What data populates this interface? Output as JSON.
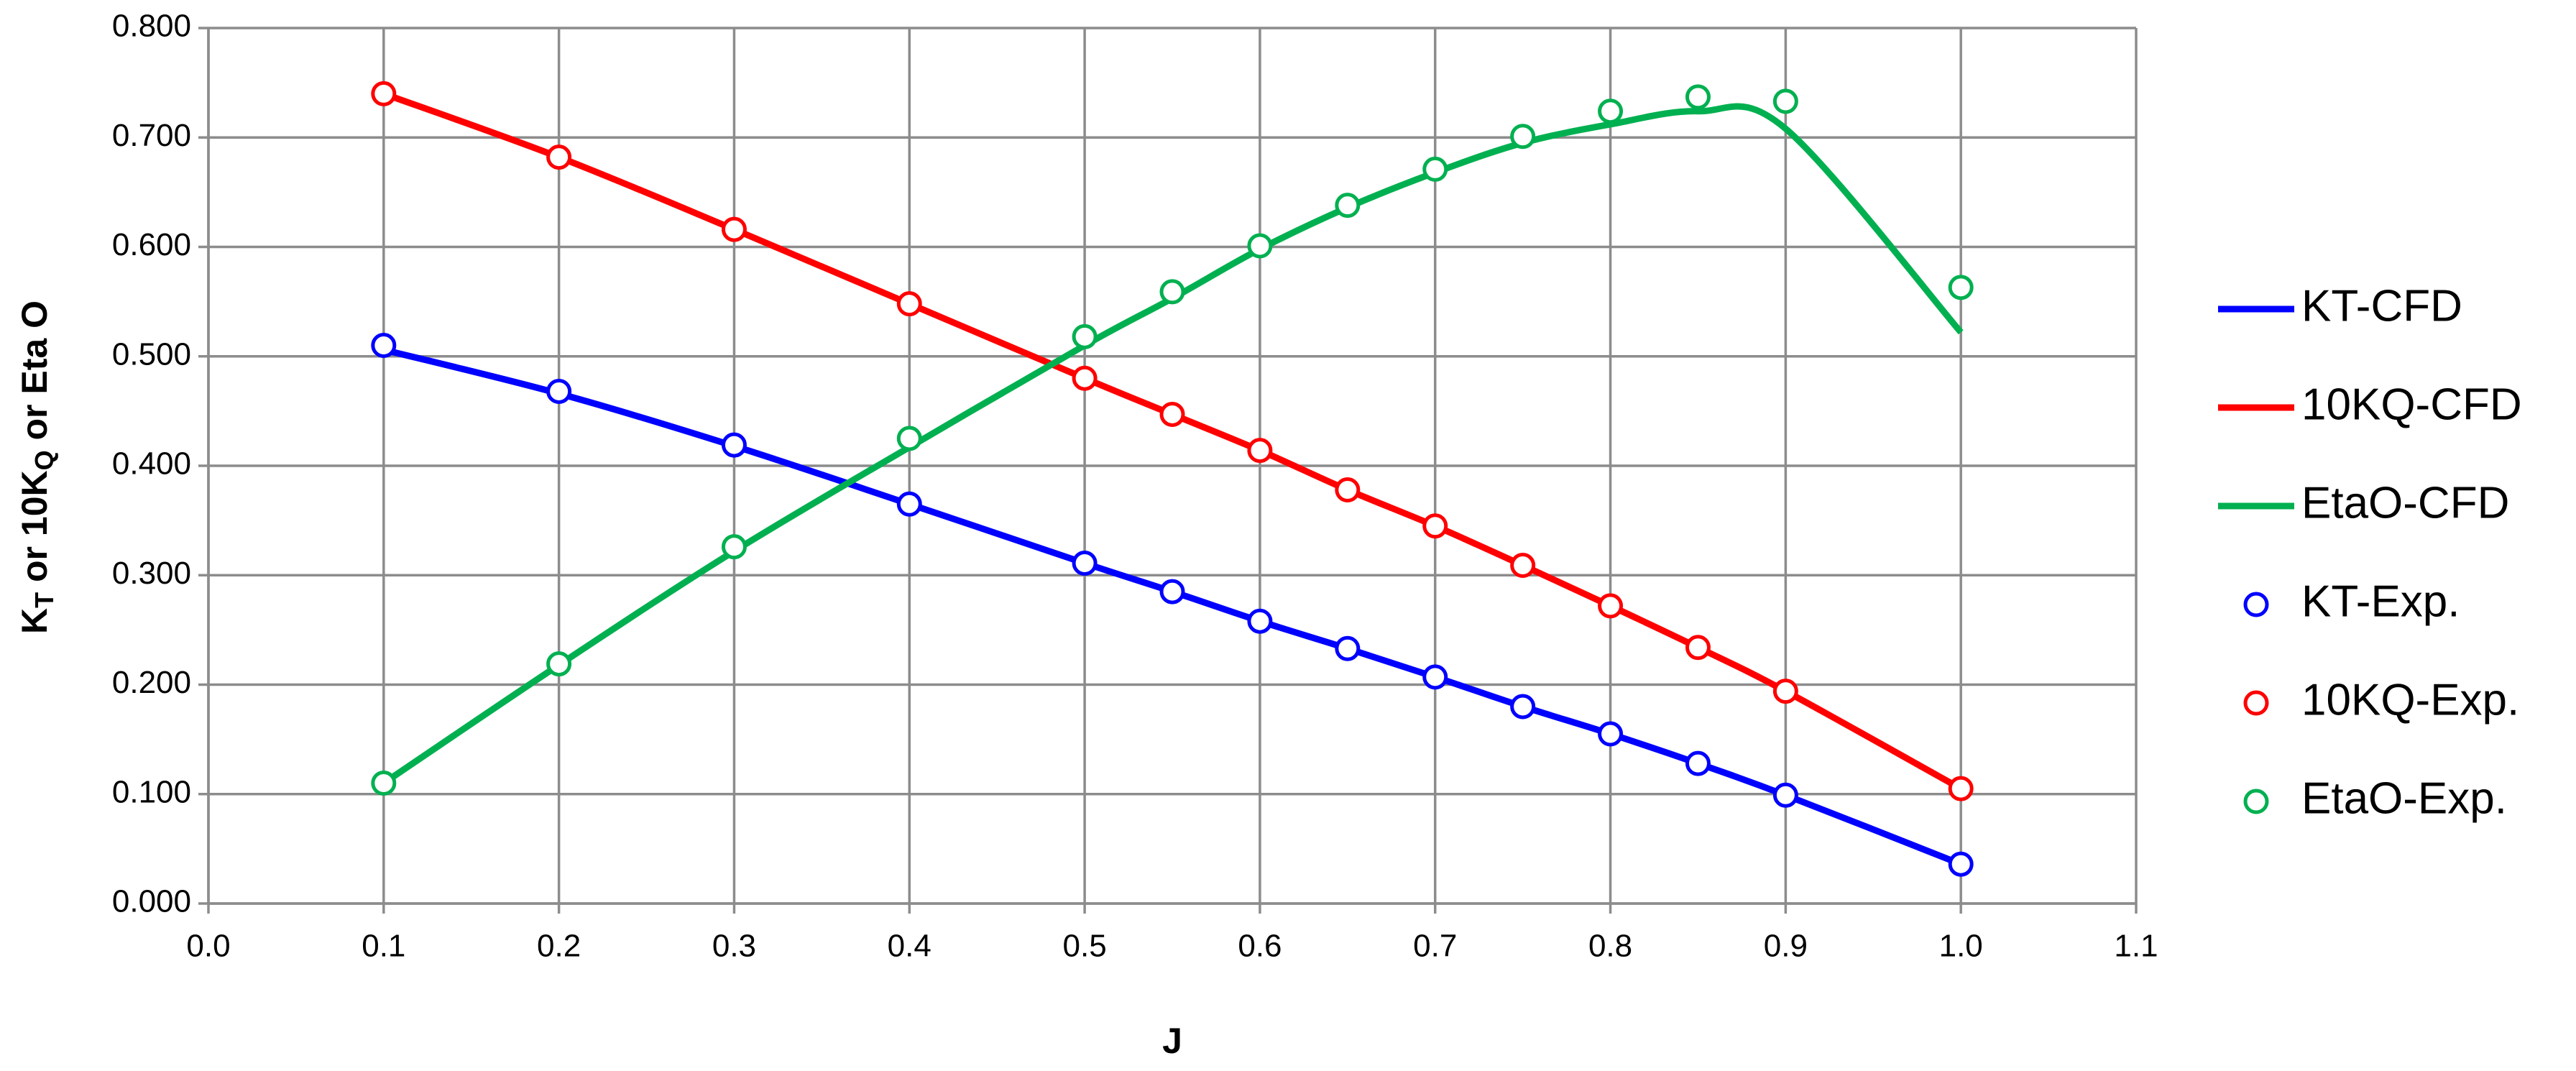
{
  "chart_data": {
    "type": "line",
    "x_label": "J",
    "y_label": [
      {
        "text": "K"
      },
      {
        "text": "T",
        "sub": true
      },
      {
        "text": " or 10K"
      },
      {
        "text": "Q",
        "sub": true
      },
      {
        "text": " or Eta O"
      }
    ],
    "x": [
      0.1,
      0.2,
      0.3,
      0.4,
      0.5,
      0.55,
      0.6,
      0.65,
      0.7,
      0.75,
      0.8,
      0.85,
      0.9,
      1.0
    ],
    "xlim": [
      0,
      1.1
    ],
    "ylim": [
      0,
      0.8
    ],
    "xticks": [
      {
        "value": 0,
        "label": "0.0"
      },
      0.1,
      0.2,
      0.3,
      0.4,
      0.5,
      0.6,
      0.7,
      0.8,
      0.9,
      {
        "value": 1,
        "label": "1.0"
      },
      1.1
    ],
    "yticks": [
      {
        "value": 0,
        "label": "0.000"
      },
      {
        "value": 0.1,
        "label": "0.100"
      },
      {
        "value": 0.2,
        "label": "0.200"
      },
      {
        "value": 0.3,
        "label": "0.300"
      },
      {
        "value": 0.4,
        "label": "0.400"
      },
      {
        "value": 0.5,
        "label": "0.500"
      },
      {
        "value": 0.6,
        "label": "0.600"
      },
      {
        "value": 0.7,
        "label": "0.700"
      },
      {
        "value": 0.8,
        "label": "0.800"
      }
    ],
    "grid": true,
    "legend": "right",
    "series": [
      {
        "name": "KT-CFD",
        "color": "#0000ff",
        "style": "line",
        "values": [
          0.506,
          0.466,
          0.418,
          0.365,
          0.311,
          0.285,
          0.258,
          0.233,
          0.207,
          0.18,
          0.155,
          0.128,
          0.099,
          0.036
        ]
      },
      {
        "name": "10KQ-CFD",
        "color": "#ff0000",
        "style": "line",
        "values": [
          0.74,
          0.682,
          0.616,
          0.548,
          0.48,
          0.447,
          0.414,
          0.378,
          0.345,
          0.309,
          0.272,
          0.234,
          0.194,
          0.105
        ]
      },
      {
        "name": "EtaO-CFD",
        "color": "#00b050",
        "style": "line",
        "values": [
          0.11,
          0.218,
          0.322,
          0.417,
          0.51,
          0.553,
          0.598,
          0.636,
          0.668,
          0.695,
          0.712,
          0.724,
          0.708,
          0.522
        ]
      },
      {
        "name": "KT-Exp.",
        "color": "#0000ff",
        "style": "marker",
        "values": [
          0.51,
          0.468,
          0.419,
          0.365,
          0.311,
          0.285,
          0.258,
          0.233,
          0.207,
          0.18,
          0.155,
          0.128,
          0.099,
          0.036
        ]
      },
      {
        "name": "10KQ-Exp.",
        "color": "#ff0000",
        "style": "marker",
        "values": [
          0.74,
          0.682,
          0.616,
          0.548,
          0.48,
          0.447,
          0.414,
          0.378,
          0.345,
          0.309,
          0.272,
          0.234,
          0.194,
          0.105
        ]
      },
      {
        "name": "EtaO-Exp.",
        "color": "#00b050",
        "style": "marker",
        "values": [
          0.11,
          0.219,
          0.326,
          0.425,
          0.518,
          0.559,
          0.601,
          0.638,
          0.671,
          0.701,
          0.724,
          0.737,
          0.733,
          0.563
        ]
      }
    ]
  }
}
